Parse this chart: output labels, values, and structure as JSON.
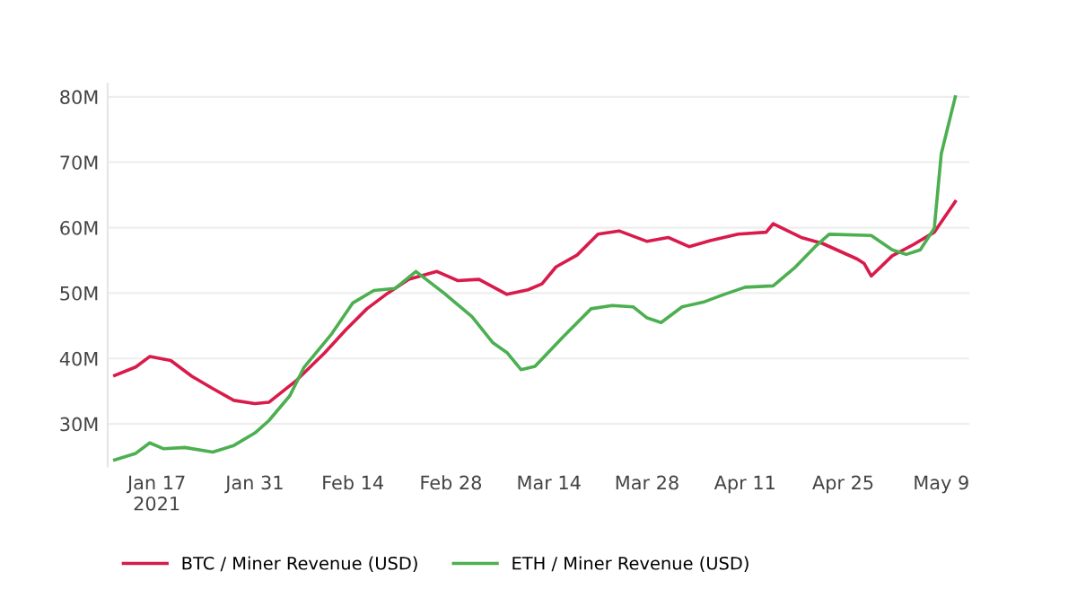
{
  "chart_data": {
    "type": "line",
    "series": [
      {
        "name": "BTC / Miner Revenue (USD)",
        "color": "#d81b4a",
        "x": [
          "2021-01-11",
          "2021-01-14",
          "2021-01-16",
          "2021-01-19",
          "2021-01-22",
          "2021-01-25",
          "2021-01-28",
          "2021-01-31",
          "2021-02-02",
          "2021-02-06",
          "2021-02-10",
          "2021-02-13",
          "2021-02-16",
          "2021-02-19",
          "2021-02-22",
          "2021-02-26",
          "2021-03-01",
          "2021-03-04",
          "2021-03-08",
          "2021-03-11",
          "2021-03-13",
          "2021-03-15",
          "2021-03-18",
          "2021-03-21",
          "2021-03-24",
          "2021-03-28",
          "2021-03-31",
          "2021-04-03",
          "2021-04-06",
          "2021-04-10",
          "2021-04-14",
          "2021-04-15",
          "2021-04-19",
          "2021-04-22",
          "2021-04-27",
          "2021-04-28",
          "2021-04-29",
          "2021-05-02",
          "2021-05-05",
          "2021-05-08",
          "2021-05-11"
        ],
        "values": [
          37.4,
          38.7,
          40.3,
          39.7,
          37.3,
          35.4,
          33.6,
          33.1,
          33.3,
          36.7,
          40.9,
          44.4,
          47.6,
          50.0,
          52.1,
          53.3,
          51.9,
          52.1,
          49.8,
          50.5,
          51.4,
          54.0,
          55.8,
          59.0,
          59.5,
          57.9,
          58.5,
          57.1,
          58.0,
          59.0,
          59.3,
          60.6,
          58.5,
          57.6,
          55.2,
          54.5,
          52.6,
          55.7,
          57.4,
          59.3,
          64.0
        ]
      },
      {
        "name": "ETH / Miner Revenue (USD)",
        "color": "#4caf50",
        "x": [
          "2021-01-11",
          "2021-01-14",
          "2021-01-16",
          "2021-01-18",
          "2021-01-21",
          "2021-01-25",
          "2021-01-28",
          "2021-01-31",
          "2021-02-02",
          "2021-02-05",
          "2021-02-07",
          "2021-02-11",
          "2021-02-14",
          "2021-02-17",
          "2021-02-20",
          "2021-02-23",
          "2021-02-27",
          "2021-03-03",
          "2021-03-06",
          "2021-03-08",
          "2021-03-10",
          "2021-03-12",
          "2021-03-16",
          "2021-03-20",
          "2021-03-23",
          "2021-03-26",
          "2021-03-28",
          "2021-03-30",
          "2021-04-02",
          "2021-04-05",
          "2021-04-08",
          "2021-04-11",
          "2021-04-15",
          "2021-04-18",
          "2021-04-21",
          "2021-04-23",
          "2021-04-29",
          "2021-05-02",
          "2021-05-04",
          "2021-05-06",
          "2021-05-08",
          "2021-05-09",
          "2021-05-11"
        ],
        "values": [
          24.5,
          25.5,
          27.1,
          26.2,
          26.4,
          25.7,
          26.7,
          28.6,
          30.5,
          34.3,
          38.6,
          43.8,
          48.5,
          50.4,
          50.7,
          53.3,
          50.0,
          46.4,
          42.4,
          40.9,
          38.3,
          38.8,
          43.3,
          47.6,
          48.1,
          47.9,
          46.2,
          45.5,
          47.9,
          48.6,
          49.8,
          50.9,
          51.1,
          53.8,
          57.1,
          59.0,
          58.8,
          56.6,
          55.9,
          56.6,
          59.9,
          71.3,
          80.0
        ]
      }
    ],
    "xlim": [
      "2021-01-10",
      "2021-05-13"
    ],
    "xticks": [
      {
        "value": "2021-01-17",
        "label": "Jan 17\n2021"
      },
      {
        "value": "2021-01-31",
        "label": "Jan 31"
      },
      {
        "value": "2021-02-14",
        "label": "Feb 14"
      },
      {
        "value": "2021-02-28",
        "label": "Feb 28"
      },
      {
        "value": "2021-03-14",
        "label": "Mar 14"
      },
      {
        "value": "2021-03-28",
        "label": "Mar 28"
      },
      {
        "value": "2021-04-11",
        "label": "Apr 11"
      },
      {
        "value": "2021-04-25",
        "label": "Apr 25"
      },
      {
        "value": "2021-05-09",
        "label": "May 9"
      }
    ],
    "ylim": [
      23.5,
      82
    ],
    "yticks": [
      {
        "value": 30,
        "label": "30M"
      },
      {
        "value": 40,
        "label": "40M"
      },
      {
        "value": 50,
        "label": "50M"
      },
      {
        "value": 60,
        "label": "60M"
      },
      {
        "value": 70,
        "label": "70M"
      },
      {
        "value": 80,
        "label": "80M"
      }
    ],
    "grid": "y",
    "legend": "bottom",
    "marker": "none",
    "line_style": "solid"
  }
}
